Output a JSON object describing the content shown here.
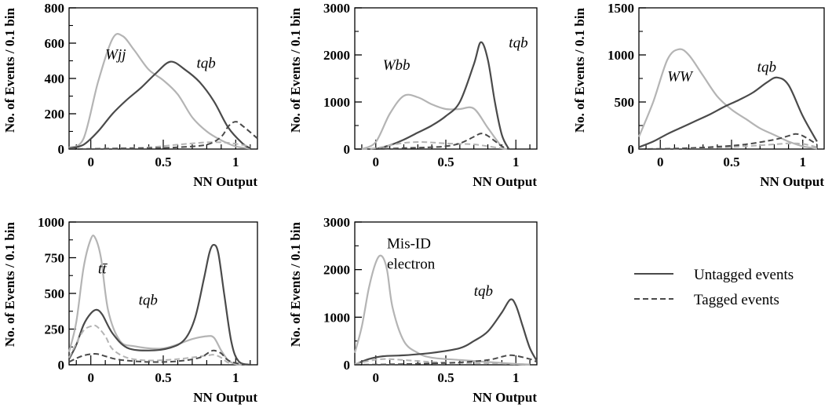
{
  "colors": {
    "untagged_signal": "#4a4a4a",
    "untagged_background": "#b4b4b4",
    "tagged_signal": "#4a4a4a",
    "tagged_background": "#b4b4b4"
  },
  "legend": {
    "position": "right",
    "untagged": "Untagged events",
    "tagged": "Tagged events"
  },
  "chart_data": [
    {
      "type": "line",
      "xlabel": "NN Output",
      "ylabel": "No. of Events / 0.1 bin",
      "xlim": [
        -0.15,
        1.15
      ],
      "ylim": [
        0,
        800
      ],
      "xticks": [
        "0",
        "0.5",
        "1"
      ],
      "yticks": [
        "0",
        "200",
        "400",
        "600",
        "800"
      ],
      "annotations": [
        {
          "text": "Wjj",
          "x": 0.1,
          "y": 510
        },
        {
          "text": "tqb",
          "x": 0.73,
          "y": 460
        }
      ],
      "series": [
        {
          "role": "untagged_background",
          "label": "Wjj",
          "x": [
            -0.15,
            -0.05,
            0.05,
            0.15,
            0.22,
            0.3,
            0.4,
            0.5,
            0.6,
            0.7,
            0.8,
            0.9,
            1.0,
            1.1
          ],
          "y": [
            8,
            60,
            380,
            625,
            640,
            560,
            450,
            390,
            310,
            180,
            100,
            50,
            15,
            3
          ]
        },
        {
          "role": "untagged_signal",
          "label": "tqb",
          "x": [
            -0.15,
            -0.05,
            0.05,
            0.15,
            0.25,
            0.35,
            0.45,
            0.55,
            0.65,
            0.75,
            0.85,
            0.95,
            1.05,
            1.1
          ],
          "y": [
            3,
            25,
            100,
            200,
            280,
            350,
            430,
            495,
            450,
            380,
            270,
            120,
            30,
            5
          ]
        },
        {
          "role": "tagged_background",
          "x": [
            -0.15,
            0,
            0.2,
            0.4,
            0.6,
            0.7,
            0.8,
            0.9,
            1.0,
            1.1
          ],
          "y": [
            0,
            2,
            5,
            10,
            25,
            32,
            38,
            38,
            30,
            15
          ]
        },
        {
          "role": "tagged_signal",
          "x": [
            -0.15,
            0,
            0.2,
            0.4,
            0.6,
            0.8,
            0.9,
            0.95,
            1.0,
            1.05,
            1.15
          ],
          "y": [
            0,
            1,
            3,
            5,
            10,
            25,
            70,
            130,
            155,
            130,
            60
          ]
        }
      ]
    },
    {
      "type": "line",
      "xlabel": "NN Output",
      "ylabel": "No. of Events / 0.1 bin",
      "xlim": [
        -0.15,
        1.15
      ],
      "ylim": [
        0,
        3000
      ],
      "xticks": [
        "0",
        "0.5",
        "1"
      ],
      "yticks": [
        "0",
        "1000",
        "2000",
        "3000"
      ],
      "annotations": [
        {
          "text": "Wbb",
          "x": 0.05,
          "y": 1680
        },
        {
          "text": "tqb",
          "x": 0.95,
          "y": 2160
        }
      ],
      "series": [
        {
          "role": "untagged_background",
          "label": "Wbb",
          "x": [
            -0.1,
            0,
            0.1,
            0.2,
            0.3,
            0.4,
            0.5,
            0.6,
            0.7,
            0.8,
            0.9,
            0.95
          ],
          "y": [
            0,
            150,
            750,
            1130,
            1100,
            950,
            850,
            850,
            860,
            450,
            50,
            0
          ]
        },
        {
          "role": "untagged_signal",
          "label": "tqb",
          "x": [
            0,
            0.1,
            0.2,
            0.3,
            0.4,
            0.5,
            0.6,
            0.7,
            0.75,
            0.8,
            0.85,
            0.9,
            0.95
          ],
          "y": [
            0,
            80,
            200,
            350,
            500,
            700,
            1000,
            1800,
            2270,
            1900,
            1000,
            300,
            0
          ]
        },
        {
          "role": "tagged_background",
          "x": [
            -0.1,
            0,
            0.1,
            0.2,
            0.3,
            0.4,
            0.5,
            0.6,
            0.7,
            0.8,
            0.9,
            0.95
          ],
          "y": [
            0,
            20,
            80,
            130,
            150,
            140,
            120,
            110,
            100,
            60,
            15,
            0
          ]
        },
        {
          "role": "tagged_signal",
          "x": [
            0,
            0.2,
            0.4,
            0.5,
            0.6,
            0.7,
            0.75,
            0.8,
            0.9,
            0.95
          ],
          "y": [
            0,
            20,
            40,
            60,
            120,
            260,
            330,
            280,
            60,
            0
          ]
        }
      ]
    },
    {
      "type": "line",
      "xlabel": "NN Output",
      "ylabel": "No. of Events / 0.1 bin",
      "xlim": [
        -0.15,
        1.15
      ],
      "ylim": [
        0,
        1500
      ],
      "xticks": [
        "0",
        "0.5",
        "1"
      ],
      "yticks": [
        "0",
        "500",
        "1000",
        "1500"
      ],
      "annotations": [
        {
          "text": "WW",
          "x": 0.05,
          "y": 720
        },
        {
          "text": "tqb",
          "x": 0.68,
          "y": 820
        }
      ],
      "series": [
        {
          "role": "untagged_background",
          "label": "WW",
          "x": [
            -0.15,
            -0.05,
            0.05,
            0.13,
            0.2,
            0.3,
            0.4,
            0.5,
            0.6,
            0.7,
            0.8,
            0.9,
            1.0,
            1.1
          ],
          "y": [
            130,
            500,
            950,
            1060,
            1000,
            780,
            560,
            420,
            320,
            220,
            150,
            80,
            30,
            5
          ]
        },
        {
          "role": "untagged_signal",
          "label": "tqb",
          "x": [
            -0.15,
            -0.05,
            0.05,
            0.15,
            0.25,
            0.35,
            0.45,
            0.55,
            0.65,
            0.75,
            0.82,
            0.9,
            1.0,
            1.1
          ],
          "y": [
            20,
            80,
            160,
            230,
            300,
            370,
            450,
            520,
            600,
            710,
            760,
            680,
            350,
            80
          ]
        },
        {
          "role": "tagged_background",
          "x": [
            -0.15,
            0,
            0.2,
            0.4,
            0.6,
            0.8,
            0.9,
            1.0,
            1.1
          ],
          "y": [
            0,
            3,
            8,
            15,
            30,
            50,
            60,
            55,
            20
          ]
        },
        {
          "role": "tagged_signal",
          "x": [
            -0.15,
            0,
            0.2,
            0.4,
            0.6,
            0.8,
            0.9,
            0.95,
            1.0,
            1.1
          ],
          "y": [
            0,
            2,
            10,
            25,
            50,
            100,
            140,
            160,
            140,
            50
          ]
        }
      ]
    },
    {
      "type": "line",
      "xlabel": "NN Output",
      "ylabel": "No. of Events / 0.1 bin",
      "xlim": [
        -0.15,
        1.15
      ],
      "ylim": [
        0,
        1000
      ],
      "xticks": [
        "0",
        "0.5",
        "1"
      ],
      "yticks": [
        "0",
        "250",
        "500",
        "750",
        "1000"
      ],
      "annotations": [
        {
          "text": "tt̄",
          "x": 0.05,
          "y": 640
        },
        {
          "text": "tqb",
          "x": 0.33,
          "y": 420
        }
      ],
      "series": [
        {
          "role": "untagged_background",
          "label": "tt",
          "x": [
            -0.15,
            -0.1,
            -0.05,
            0,
            0.03,
            0.07,
            0.12,
            0.2,
            0.3,
            0.5,
            0.7,
            0.8,
            0.85,
            0.9,
            0.95,
            1.0,
            1.05
          ],
          "y": [
            90,
            300,
            680,
            880,
            890,
            750,
            380,
            170,
            130,
            115,
            180,
            200,
            190,
            100,
            30,
            5,
            0
          ]
        },
        {
          "role": "untagged_signal",
          "label": "tqb",
          "x": [
            -0.15,
            -0.1,
            -0.05,
            0,
            0.04,
            0.08,
            0.15,
            0.25,
            0.4,
            0.55,
            0.65,
            0.72,
            0.78,
            0.82,
            0.85,
            0.88,
            0.92,
            0.97,
            1.02,
            1.1
          ],
          "y": [
            40,
            140,
            280,
            360,
            385,
            350,
            220,
            120,
            100,
            120,
            180,
            330,
            600,
            790,
            840,
            780,
            500,
            160,
            25,
            0
          ]
        },
        {
          "role": "tagged_background",
          "x": [
            -0.15,
            -0.1,
            -0.05,
            0,
            0.04,
            0.1,
            0.15,
            0.25,
            0.4,
            0.6,
            0.8,
            0.85,
            0.9,
            0.95,
            1.05
          ],
          "y": [
            50,
            150,
            240,
            270,
            270,
            200,
            110,
            50,
            30,
            40,
            65,
            70,
            50,
            15,
            0
          ]
        },
        {
          "role": "tagged_signal",
          "x": [
            -0.15,
            -0.1,
            -0.05,
            0,
            0.05,
            0.1,
            0.2,
            0.4,
            0.6,
            0.75,
            0.82,
            0.85,
            0.9,
            0.95,
            1.05
          ],
          "y": [
            20,
            45,
            65,
            75,
            75,
            60,
            35,
            20,
            25,
            50,
            90,
            100,
            80,
            30,
            0
          ]
        }
      ]
    },
    {
      "type": "line",
      "xlabel": "NN Output",
      "ylabel": "No. of Events / 0.1 bin",
      "xlim": [
        -0.15,
        1.15
      ],
      "ylim": [
        0,
        3000
      ],
      "xticks": [
        "0",
        "0.5",
        "1"
      ],
      "yticks": [
        "0",
        "1000",
        "2000",
        "3000"
      ],
      "annotations": [
        {
          "text": "Mis-ID",
          "x": 0.08,
          "y": 2450
        },
        {
          "text": "electron",
          "x": 0.08,
          "y": 2020
        },
        {
          "text": "tqb",
          "x": 0.7,
          "y": 1450
        }
      ],
      "series": [
        {
          "role": "untagged_background",
          "label": "Mis-ID electron",
          "x": [
            -0.15,
            -0.1,
            -0.05,
            0,
            0.04,
            0.08,
            0.12,
            0.2,
            0.3,
            0.4,
            0.6,
            0.8,
            1.0,
            1.1
          ],
          "y": [
            250,
            800,
            1600,
            2150,
            2290,
            2000,
            1200,
            500,
            250,
            150,
            100,
            60,
            20,
            5
          ]
        },
        {
          "role": "untagged_signal",
          "label": "tqb",
          "x": [
            -0.15,
            -0.05,
            0.05,
            0.2,
            0.4,
            0.6,
            0.7,
            0.8,
            0.9,
            0.96,
            1.0,
            1.05,
            1.1,
            1.15
          ],
          "y": [
            5,
            120,
            180,
            200,
            250,
            350,
            500,
            700,
            1100,
            1370,
            1250,
            800,
            350,
            80
          ]
        },
        {
          "role": "tagged_background",
          "x": [
            -0.15,
            -0.05,
            0.05,
            0.2,
            0.4,
            0.6,
            0.8,
            1.0,
            1.1
          ],
          "y": [
            20,
            80,
            120,
            100,
            60,
            40,
            30,
            15,
            5
          ]
        },
        {
          "role": "tagged_signal",
          "x": [
            -0.15,
            0,
            0.2,
            0.4,
            0.6,
            0.8,
            0.9,
            0.95,
            1.0,
            1.1,
            1.15
          ],
          "y": [
            0,
            5,
            15,
            30,
            50,
            100,
            170,
            200,
            190,
            120,
            60
          ]
        }
      ]
    }
  ]
}
